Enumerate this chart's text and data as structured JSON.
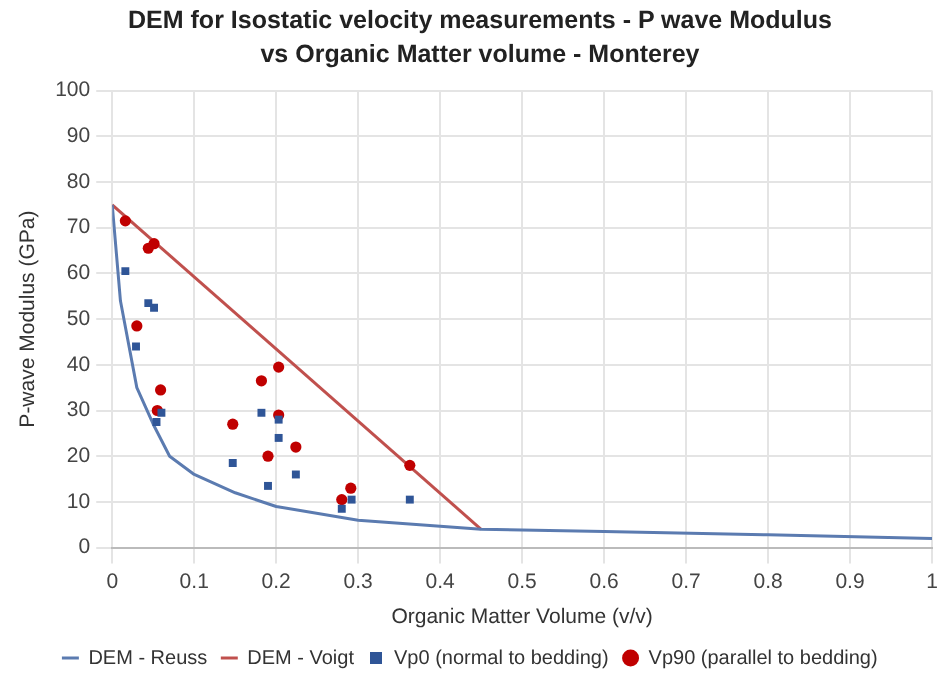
{
  "chart_data": {
    "type": "scatter",
    "title": "DEM for Isostatic velocity measurements - P wave Modulus vs Organic Matter volume - Monterey",
    "xlabel": "Organic Matter Volume (v/v)",
    "ylabel": "P-wave Modulus (GPa)",
    "xlim": [
      0,
      1
    ],
    "xticks": [
      0,
      0.1,
      0.2,
      0.3,
      0.4,
      0.5,
      0.6,
      0.7,
      0.8,
      0.9,
      1
    ],
    "ylim": [
      0,
      100
    ],
    "yticks": [
      0,
      10,
      20,
      30,
      40,
      50,
      60,
      70,
      80,
      90,
      100
    ],
    "grid": true,
    "legend": "bottom",
    "series": [
      {
        "name": "DEM - Reuss",
        "type": "line",
        "marker": "none",
        "color": "#5b7bb0",
        "x": [
          0,
          0.01,
          0.03,
          0.05,
          0.07,
          0.1,
          0.15,
          0.2,
          0.3,
          0.45,
          0.6,
          0.8,
          1
        ],
        "values": [
          75,
          54,
          35,
          27,
          20,
          16,
          12,
          9,
          6,
          4,
          3.5,
          2.8,
          2
        ]
      },
      {
        "name": "DEM - Voigt",
        "type": "line",
        "marker": "none",
        "color": "#c0504d",
        "x": [
          0,
          0.45
        ],
        "values": [
          75,
          4
        ]
      },
      {
        "name": "Vp0 (normal to bedding)",
        "marker": "square",
        "color": "#2f5597",
        "x": [
          0.016,
          0.029,
          0.044,
          0.051,
          0.054,
          0.06,
          0.147,
          0.182,
          0.19,
          0.203,
          0.203,
          0.224,
          0.28,
          0.292,
          0.363
        ],
        "values": [
          60.5,
          44,
          53.5,
          52.5,
          27.5,
          29.5,
          18.5,
          29.5,
          13.5,
          24,
          28,
          16,
          8.5,
          10.5,
          10.5
        ]
      },
      {
        "name": "Vp90 (parallel to bedding)",
        "marker": "circle",
        "color": "#c00000",
        "x": [
          0.016,
          0.03,
          0.044,
          0.051,
          0.055,
          0.059,
          0.147,
          0.182,
          0.19,
          0.203,
          0.203,
          0.224,
          0.28,
          0.291,
          0.363
        ],
        "values": [
          71.5,
          48.5,
          65.5,
          66.5,
          30,
          34.5,
          27,
          36.5,
          20,
          39.5,
          29,
          22,
          10.5,
          13,
          18
        ]
      }
    ]
  }
}
